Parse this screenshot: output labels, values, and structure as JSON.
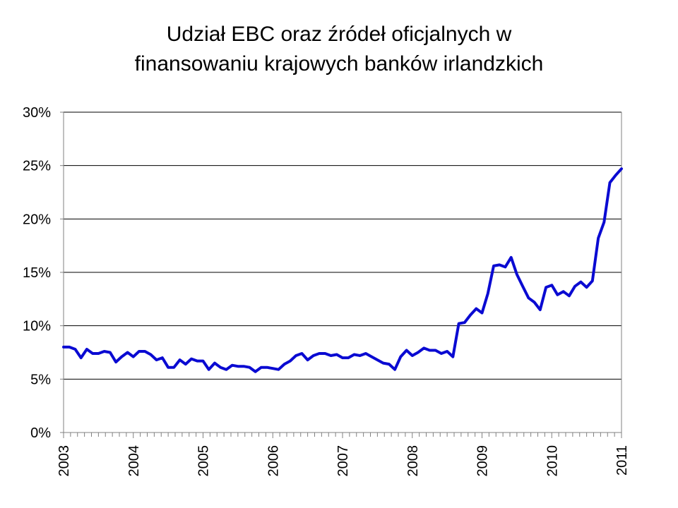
{
  "title_lines": [
    "Udział EBC oraz źródeł oficjalnych w",
    "finansowaniu krajowych banków irlandzkich"
  ],
  "colors": {
    "line": "#0a0ad2",
    "grid": "#000000",
    "axis": "#808080"
  },
  "chart_data": {
    "type": "line",
    "title": "Udział EBC oraz źródeł oficjalnych w finansowaniu krajowych banków irlandzkich",
    "xlabel": "",
    "ylabel": "",
    "ylim": [
      0,
      30
    ],
    "xlim": [
      2003,
      2011
    ],
    "yticks": [
      0,
      5,
      10,
      15,
      20,
      25,
      30
    ],
    "ytick_labels": [
      "0%",
      "5%",
      "10%",
      "15%",
      "20%",
      "25%",
      "30%"
    ],
    "xtick_labels": [
      "2003",
      "2004",
      "2005",
      "2006",
      "2007",
      "2008",
      "2009",
      "2010",
      "2011"
    ],
    "grid": "horizontal",
    "legend": "none",
    "series": [
      {
        "x": [
          2003.0,
          2003.083,
          2003.167,
          2003.25,
          2003.333,
          2003.417,
          2003.5,
          2003.583,
          2003.667,
          2003.75,
          2003.833,
          2003.917,
          2004.0,
          2004.083,
          2004.167,
          2004.25,
          2004.333,
          2004.417,
          2004.5,
          2004.583,
          2004.667,
          2004.75,
          2004.833,
          2004.917,
          2005.0,
          2005.083,
          2005.167,
          2005.25,
          2005.333,
          2005.417,
          2005.5,
          2005.583,
          2005.667,
          2005.75,
          2005.833,
          2005.917,
          2006.0,
          2006.083,
          2006.167,
          2006.25,
          2006.333,
          2006.417,
          2006.5,
          2006.583,
          2006.667,
          2006.75,
          2006.833,
          2006.917,
          2007.0,
          2007.083,
          2007.167,
          2007.25,
          2007.333,
          2007.417,
          2007.5,
          2007.583,
          2007.667,
          2007.75,
          2007.833,
          2007.917,
          2008.0,
          2008.083,
          2008.167,
          2008.25,
          2008.333,
          2008.417,
          2008.5,
          2008.583,
          2008.667,
          2008.75,
          2008.833,
          2008.917,
          2009.0,
          2009.083,
          2009.167,
          2009.25,
          2009.333,
          2009.417,
          2009.5,
          2009.583,
          2009.667,
          2009.75,
          2009.833,
          2009.917,
          2010.0,
          2010.083,
          2010.167,
          2010.25,
          2010.333,
          2010.417,
          2010.5,
          2010.583,
          2010.667,
          2010.75,
          2010.833,
          2010.917,
          2011.0
        ],
        "values": [
          8.0,
          8.0,
          7.8,
          7.0,
          7.8,
          7.4,
          7.4,
          7.6,
          7.5,
          6.6,
          7.1,
          7.5,
          7.1,
          7.6,
          7.6,
          7.3,
          6.8,
          7.0,
          6.1,
          6.1,
          6.8,
          6.4,
          6.9,
          6.7,
          6.7,
          5.9,
          6.5,
          6.1,
          5.9,
          6.3,
          6.2,
          6.2,
          6.1,
          5.7,
          6.1,
          6.1,
          6.0,
          5.9,
          6.4,
          6.7,
          7.2,
          7.4,
          6.8,
          7.2,
          7.4,
          7.4,
          7.2,
          7.3,
          7.0,
          7.0,
          7.3,
          7.2,
          7.4,
          7.1,
          6.8,
          6.5,
          6.4,
          5.9,
          7.1,
          7.7,
          7.2,
          7.5,
          7.9,
          7.7,
          7.7,
          7.4,
          7.6,
          7.1,
          10.2,
          10.3,
          11.0,
          11.6,
          11.2,
          13.0,
          15.6,
          15.7,
          15.5,
          16.4,
          14.8,
          13.7,
          12.6,
          12.2,
          11.5,
          13.6,
          13.8,
          12.9,
          13.2,
          12.8,
          13.7,
          14.1,
          13.6,
          14.2,
          18.2,
          19.7,
          23.4,
          24.1,
          24.7
        ]
      }
    ]
  }
}
